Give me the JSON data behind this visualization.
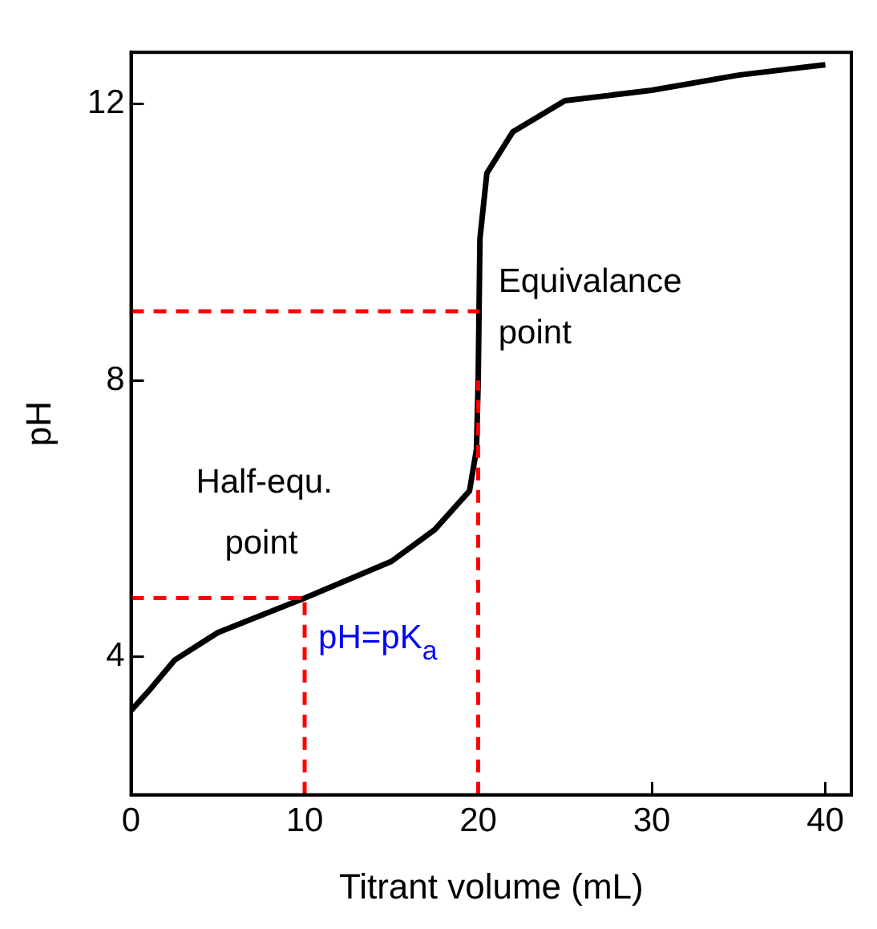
{
  "chart_data": {
    "type": "line",
    "xlabel": "Titrant volume (mL)",
    "ylabel": "pH",
    "x": [
      0,
      1,
      2.5,
      5,
      10,
      15,
      17.5,
      19.5,
      19.9,
      20,
      20.1,
      20.5,
      22,
      25,
      30,
      35,
      40
    ],
    "series": [
      {
        "color": "#000000",
        "values": [
          3.22,
          3.5,
          3.95,
          4.35,
          4.85,
          5.38,
          5.84,
          6.4,
          7.0,
          8.0,
          10.05,
          11.0,
          11.6,
          12.05,
          12.2,
          12.42,
          12.57
        ]
      }
    ],
    "xlim": [
      0,
      41.5
    ],
    "xticks": [
      0,
      10,
      20,
      30,
      40
    ],
    "ylim": [
      2,
      12.75
    ],
    "yticks": [
      4,
      8,
      12
    ],
    "grid": false,
    "legend": false,
    "marker": "none",
    "line_style": "solid",
    "ref_lines": [
      {
        "axis": "y",
        "value": 9,
        "color": "#ff0000",
        "line_style": "dashed"
      },
      {
        "axis": "x",
        "value": 20,
        "color": "#ff0000",
        "line_style": "dashed"
      },
      {
        "axis": "y",
        "value": 4.85,
        "color": "#ff0000",
        "line_style": "dashed"
      },
      {
        "axis": "x",
        "value": 10,
        "color": "#ff0000",
        "line_style": "dashed"
      }
    ],
    "annotations": [
      "Equivalance point",
      "Half-equ. point",
      "pH=pK$_{a}$"
    ]
  }
}
